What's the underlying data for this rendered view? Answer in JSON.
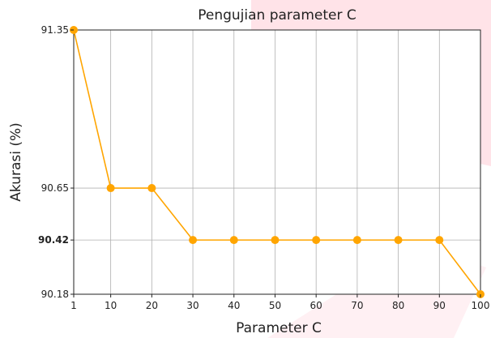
{
  "chart_data": {
    "type": "line",
    "title": "Pengujian parameter C",
    "xlabel": "Parameter C",
    "ylabel": "Akurasi (%)",
    "x": [
      1,
      10,
      20,
      30,
      40,
      50,
      60,
      70,
      80,
      90,
      100
    ],
    "x_ticks": [
      "1",
      "10",
      "20",
      "30",
      "40",
      "50",
      "60",
      "70",
      "80",
      "90",
      "100"
    ],
    "series": [
      {
        "values": [
          91.35,
          90.65,
          90.65,
          90.42,
          90.42,
          90.42,
          90.42,
          90.42,
          90.42,
          90.42,
          90.18
        ]
      }
    ],
    "y_ticks": [
      "91.35",
      "90.65",
      "90.42",
      "90.18"
    ],
    "y_tick_values": [
      91.35,
      90.65,
      90.42,
      90.18
    ],
    "bold_y_tick": "90.42",
    "xlim": [
      1,
      100
    ],
    "ylim": [
      90.18,
      91.35
    ],
    "grid": true,
    "line_color": "#FFA500",
    "background_accent_color": "#FFE3E8"
  }
}
